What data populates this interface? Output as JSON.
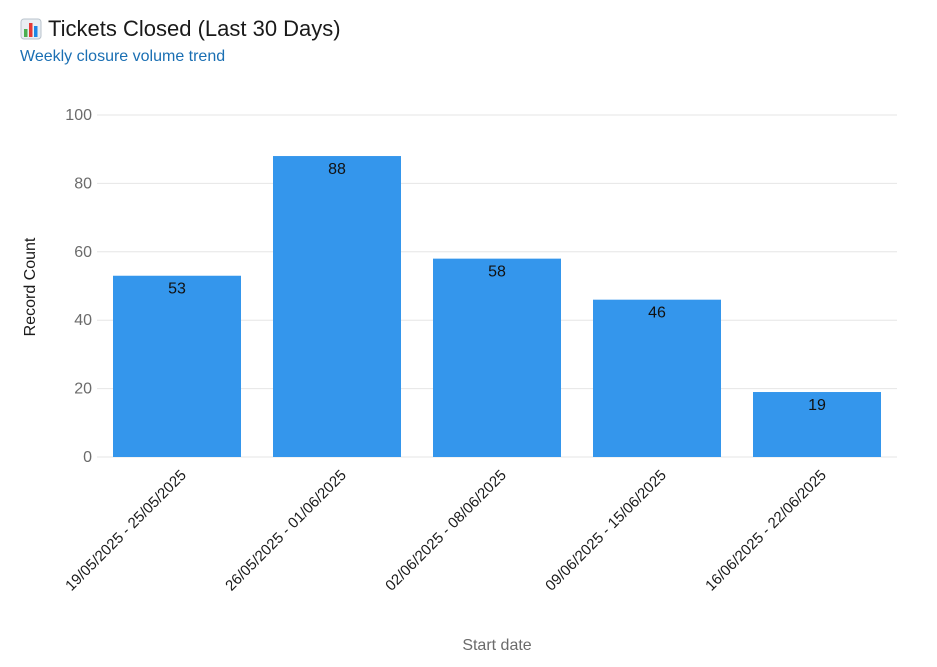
{
  "header": {
    "icon": "bar-chart-icon",
    "title": "Tickets Closed (Last 30 Days)",
    "subtitle": "Weekly closure volume trend"
  },
  "colors": {
    "bar": "#3496ec",
    "grid": "#e6e6e6",
    "subtitle": "#1a6fb3"
  },
  "chart_data": {
    "type": "bar",
    "categories": [
      "19/05/2025 - 25/05/2025",
      "26/05/2025 - 01/06/2025",
      "02/06/2025 - 08/06/2025",
      "09/06/2025 - 15/06/2025",
      "16/06/2025 - 22/06/2025"
    ],
    "values": [
      53,
      88,
      58,
      46,
      19
    ],
    "xlabel": "Start date",
    "ylabel": "Record Count",
    "ylim": [
      0,
      100
    ],
    "yticks": [
      0,
      20,
      40,
      60,
      80,
      100
    ],
    "grid": true,
    "data_labels": true
  }
}
